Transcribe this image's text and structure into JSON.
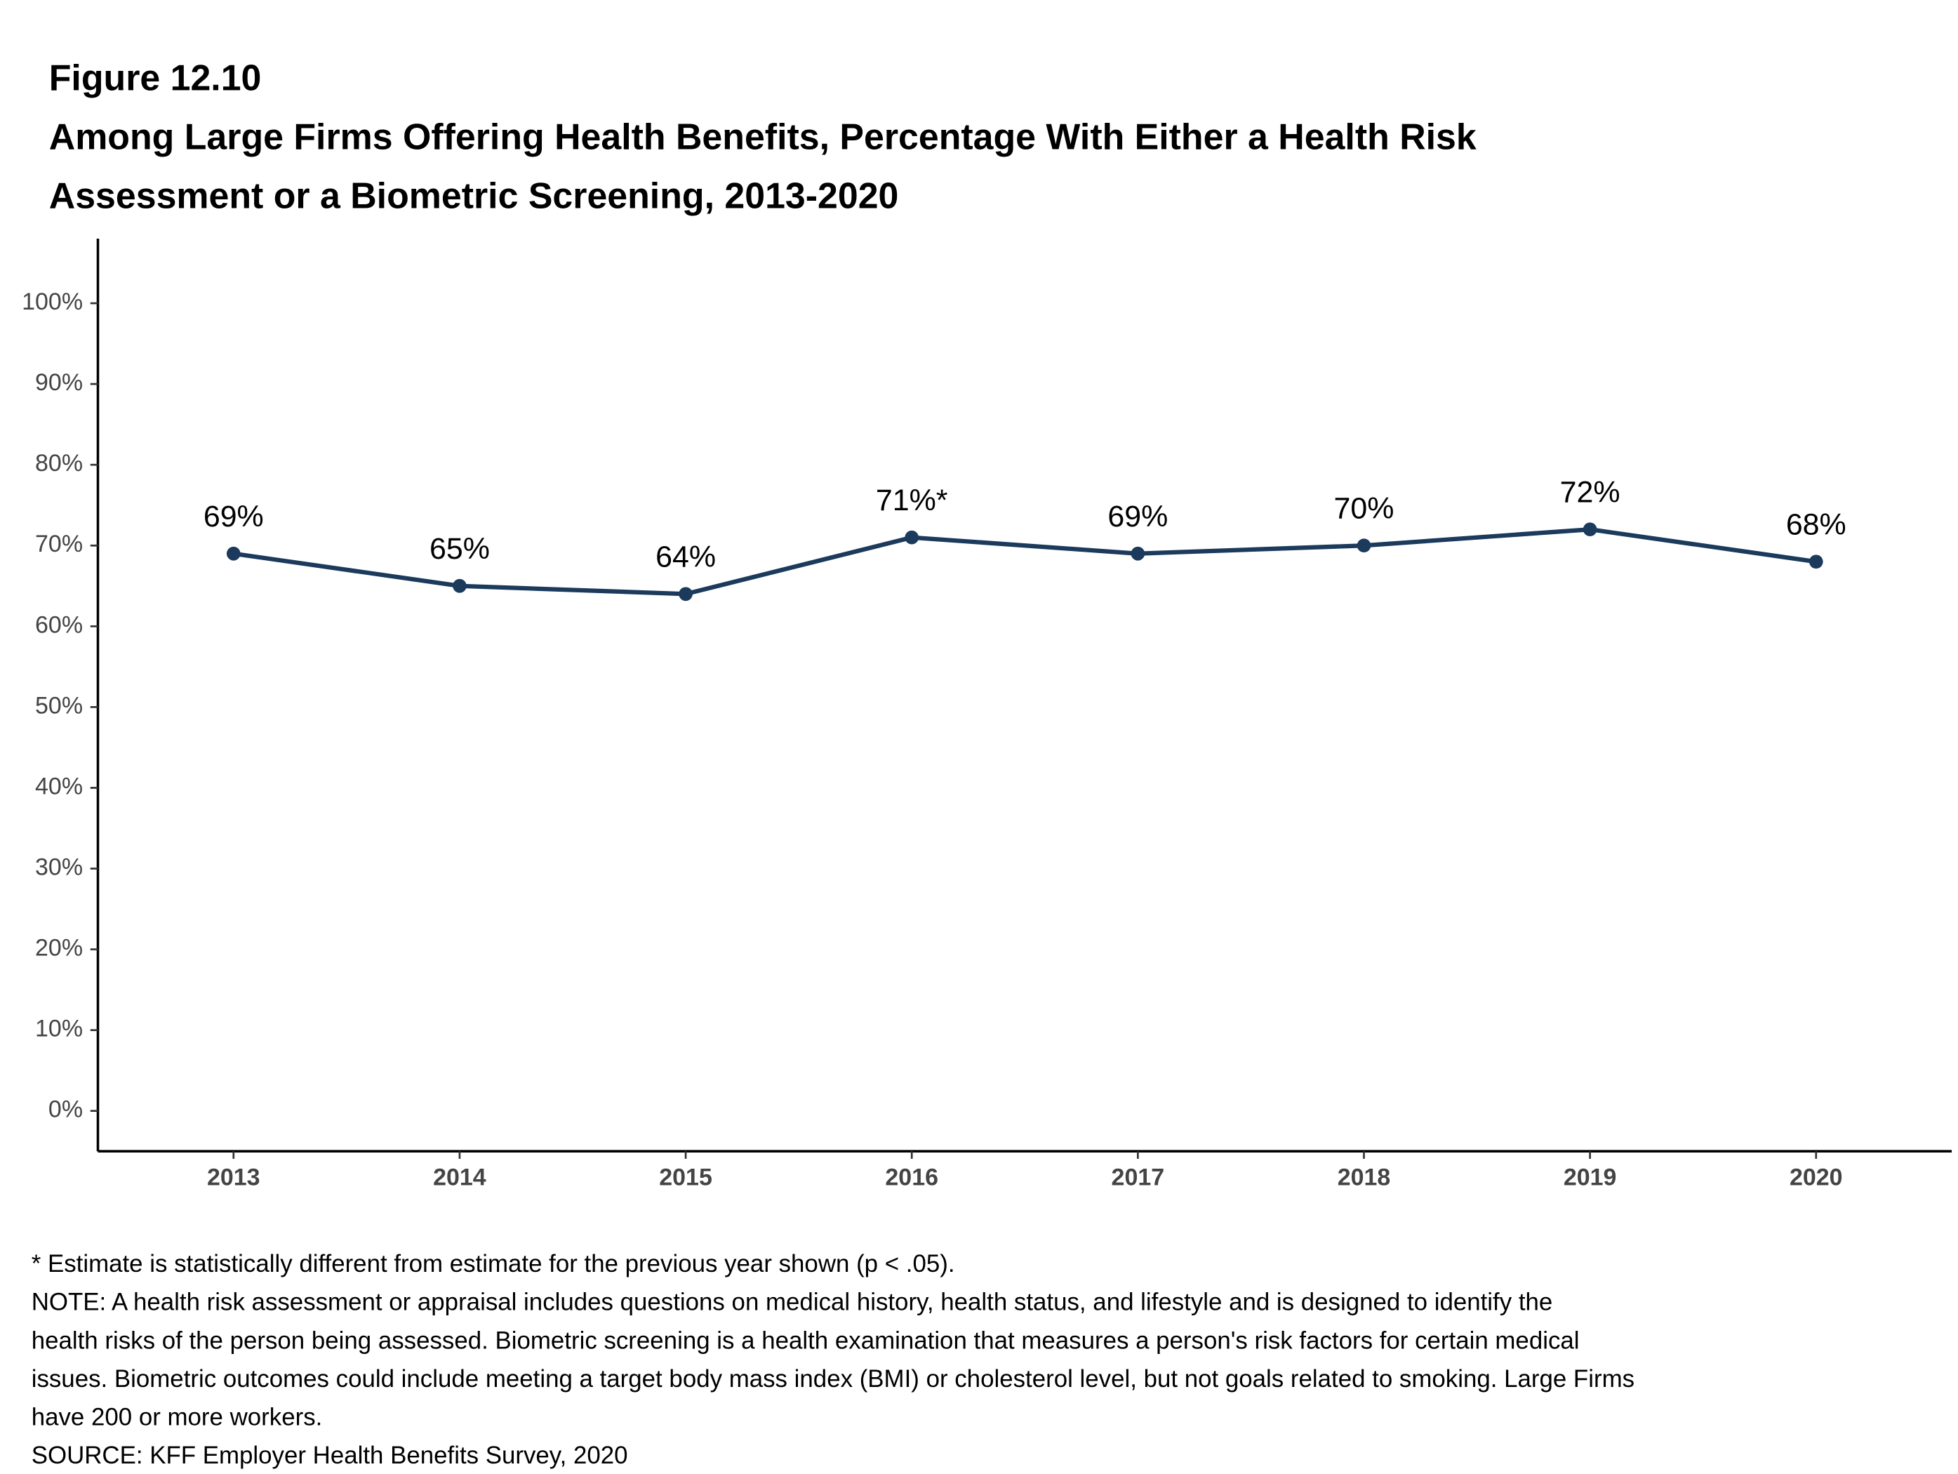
{
  "chart_data": {
    "type": "line",
    "figure_label": "Figure 12.10",
    "title": [
      "Among Large Firms Offering Health Benefits, Percentage With Either a Health Risk",
      "Assessment or a Biometric Screening, 2013-2020"
    ],
    "x": [
      2013,
      2014,
      2015,
      2016,
      2017,
      2018,
      2019,
      2020
    ],
    "series": [
      {
        "color": "#1b3a5c",
        "values": [
          69,
          65,
          64,
          71,
          69,
          70,
          72,
          68
        ],
        "value_labels": [
          "69%",
          "65%",
          "64%",
          "71%*",
          "69%",
          "70%",
          "72%",
          "68%"
        ]
      }
    ],
    "xlim": [
      2012.4,
      2020.6
    ],
    "xticks": [
      2013,
      2014,
      2015,
      2016,
      2017,
      2018,
      2019,
      2020
    ],
    "ylim": [
      -5,
      108
    ],
    "yticks": [
      {
        "value": 0,
        "label": "0%"
      },
      {
        "value": 10,
        "label": "10%"
      },
      {
        "value": 20,
        "label": "20%"
      },
      {
        "value": 30,
        "label": "30%"
      },
      {
        "value": 40,
        "label": "40%"
      },
      {
        "value": 50,
        "label": "50%"
      },
      {
        "value": 60,
        "label": "60%"
      },
      {
        "value": 70,
        "label": "70%"
      },
      {
        "value": 80,
        "label": "80%"
      },
      {
        "value": 90,
        "label": "90%"
      },
      {
        "value": 100,
        "label": "100%"
      }
    ],
    "grid": false,
    "notes": [
      "* Estimate is statistically different from estimate for the previous year shown (p < .05).",
      "NOTE: A health risk assessment or appraisal includes questions on medical history, health status, and lifestyle and is designed to identify the",
      "health risks of the person being assessed.  Biometric screening is a health examination that measures a person's risk factors for certain medical",
      "issues. Biometric outcomes could include meeting a target body mass index (BMI) or cholesterol level, but not goals related to smoking.  Large Firms",
      "have 200 or more workers.",
      "SOURCE: KFF Employer Health Benefits Survey, 2020"
    ]
  }
}
